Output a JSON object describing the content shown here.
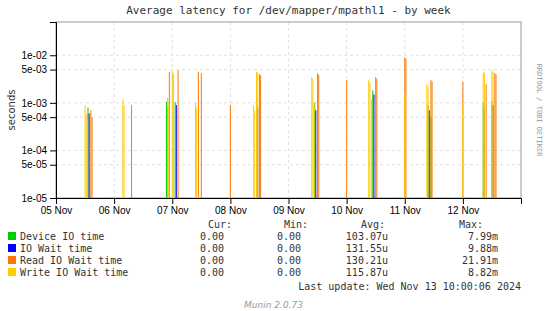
{
  "chart_data": {
    "type": "spike",
    "title": "Average latency for /dev/mapper/mpathl1 - by week",
    "ylabel": "seconds",
    "log": "y",
    "grid": true,
    "legend": "bottom",
    "xlim": [
      0,
      8
    ],
    "ylim": [
      1e-05,
      0.05
    ],
    "xticks": [
      {
        "value": 0,
        "label": "05 Nov"
      },
      {
        "value": 1,
        "label": "06 Nov"
      },
      {
        "value": 2,
        "label": "07 Nov"
      },
      {
        "value": 3,
        "label": "08 Nov"
      },
      {
        "value": 4,
        "label": "09 Nov"
      },
      {
        "value": 5,
        "label": "10 Nov"
      },
      {
        "value": 6,
        "label": "11 Nov"
      },
      {
        "value": 7,
        "label": "12 Nov"
      }
    ],
    "yticks": [
      {
        "value": 1e-05,
        "label": "1e-05"
      },
      {
        "value": 5e-05,
        "label": "5e-05"
      },
      {
        "value": 0.0001,
        "label": "1e-04"
      },
      {
        "value": 0.0005,
        "label": "5e-04"
      },
      {
        "value": 0.001,
        "label": "1e-03"
      },
      {
        "value": 0.005,
        "label": "5e-03"
      },
      {
        "value": 0.01,
        "label": "1e-02"
      }
    ],
    "stats_header": [
      "Cur:",
      "Min:",
      "Avg:",
      "Max:"
    ],
    "annotations": [
      "RRDTOOL / TOBI OETIKER",
      "Last update: Wed Nov 13 10:00:06 2024",
      "Munin 2.0.73"
    ],
    "series": [
      {
        "name": "Device IO time",
        "color": "#00cc00",
        "x": [
          0.55,
          1.9,
          2.05,
          3.45,
          4.45,
          5.45,
          6.4,
          6.45,
          7.35,
          7.5
        ],
        "values": [
          0.0008,
          0.00105,
          0.00105,
          0.0012,
          0.001,
          0.0018,
          0.0009,
          0.0005,
          0.001,
          0.0011
        ],
        "stats": [
          "0.00",
          "0.00",
          "103.07u",
          "7.99m"
        ]
      },
      {
        "name": "IO Wait time",
        "color": "#0000ff",
        "x": [
          0.57,
          1.92,
          2.07,
          3.47,
          4.47,
          5.47,
          6.42,
          7.37,
          7.52
        ],
        "values": [
          0.0006,
          0.0008,
          0.0009,
          0.0008,
          0.0007,
          0.0015,
          0.0007,
          0.0008,
          0.0009
        ],
        "stats": [
          "0.00",
          "0.00",
          "131.55u",
          "9.88m"
        ]
      },
      {
        "name": "Read IO Wait time",
        "color": "#ff7700",
        "x": [
          0.6,
          0.62,
          1.3,
          1.95,
          2.1,
          2.45,
          2.5,
          3.0,
          3.5,
          3.52,
          4.5,
          4.52,
          5.0,
          5.5,
          5.52,
          6.0,
          6.02,
          6.45,
          6.47,
          7.0,
          7.4,
          7.55,
          7.57
        ],
        "values": [
          0.0007,
          0.0005,
          0.0009,
          0.0045,
          0.0048,
          0.0045,
          0.0042,
          0.0009,
          0.004,
          0.0038,
          0.0042,
          0.0039,
          0.003,
          0.0035,
          0.0032,
          0.009,
          0.0085,
          0.003,
          0.0028,
          0.0028,
          0.0025,
          0.0042,
          0.004
        ],
        "stats": [
          "0.00",
          "0.00",
          "130.21u",
          "21.91m"
        ]
      },
      {
        "name": "Write IO Wait time",
        "color": "#ffcc00",
        "x": [
          0.5,
          0.52,
          0.54,
          1.15,
          1.17,
          1.92,
          1.94,
          2.0,
          2.02,
          2.4,
          2.42,
          3.4,
          3.42,
          3.45,
          3.47,
          4.4,
          4.42,
          4.44,
          5.38,
          5.4,
          5.43,
          6.0,
          6.38,
          6.4,
          7.0,
          7.35,
          7.37,
          7.5,
          7.52
        ],
        "values": [
          0.0009,
          0.0006,
          0.0004,
          0.0012,
          0.0009,
          0.0013,
          0.0011,
          0.0045,
          0.0042,
          0.001,
          0.0008,
          0.0009,
          0.0007,
          0.0045,
          0.0043,
          0.0035,
          0.0032,
          0.001,
          0.003,
          0.0027,
          0.0012,
          0.0015,
          0.0025,
          0.0022,
          0.001,
          0.0045,
          0.0042,
          0.0048,
          0.0045
        ],
        "stats": [
          "0.00",
          "0.00",
          "115.87u",
          "8.82m"
        ]
      }
    ]
  }
}
